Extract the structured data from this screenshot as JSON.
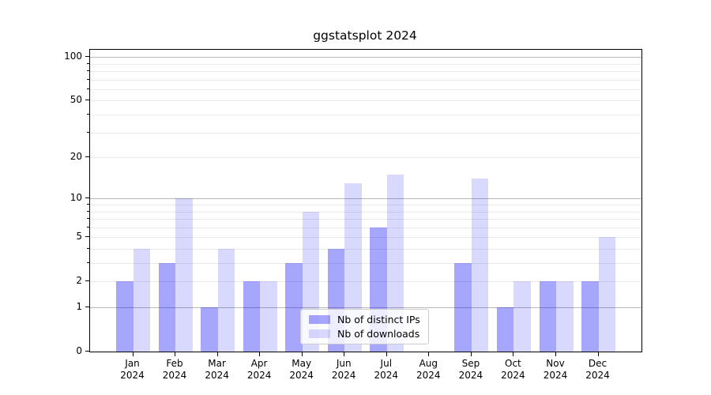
{
  "chart_data": {
    "type": "bar",
    "title": "ggstatsplot 2024",
    "x_categories": [
      "Jan",
      "Feb",
      "Mar",
      "Apr",
      "May",
      "Jun",
      "Jul",
      "Aug",
      "Sep",
      "Oct",
      "Nov",
      "Dec"
    ],
    "x_year": "2024",
    "series": [
      {
        "name": "Nb of distinct IPs",
        "color": "rgba(0, 0, 250, 0.35)",
        "values": [
          2,
          3,
          1,
          2,
          3,
          4,
          6,
          0,
          3,
          1,
          2,
          2
        ]
      },
      {
        "name": "Nb of downloads",
        "color": "rgba(0, 0, 250, 0.15)",
        "values": [
          4,
          10,
          4,
          2,
          8,
          13,
          15,
          0,
          14,
          2,
          2,
          5
        ]
      }
    ],
    "yscale": "log1p",
    "ylim": [
      0,
      112
    ],
    "ytick_labels": [
      0,
      1,
      2,
      5,
      10,
      20,
      50,
      100
    ],
    "major_gridlines": [
      1,
      10,
      100
    ],
    "minor_gridlines": [
      2,
      3,
      4,
      5,
      6,
      7,
      8,
      9,
      20,
      30,
      40,
      50,
      60,
      70,
      80,
      90
    ],
    "legend_position": "lower center",
    "grid": "on",
    "colors": {
      "major_grid": "#b8b8b8",
      "minor_grid": "#eaeaea",
      "spine": "#000000",
      "background": "#ffffff"
    }
  }
}
